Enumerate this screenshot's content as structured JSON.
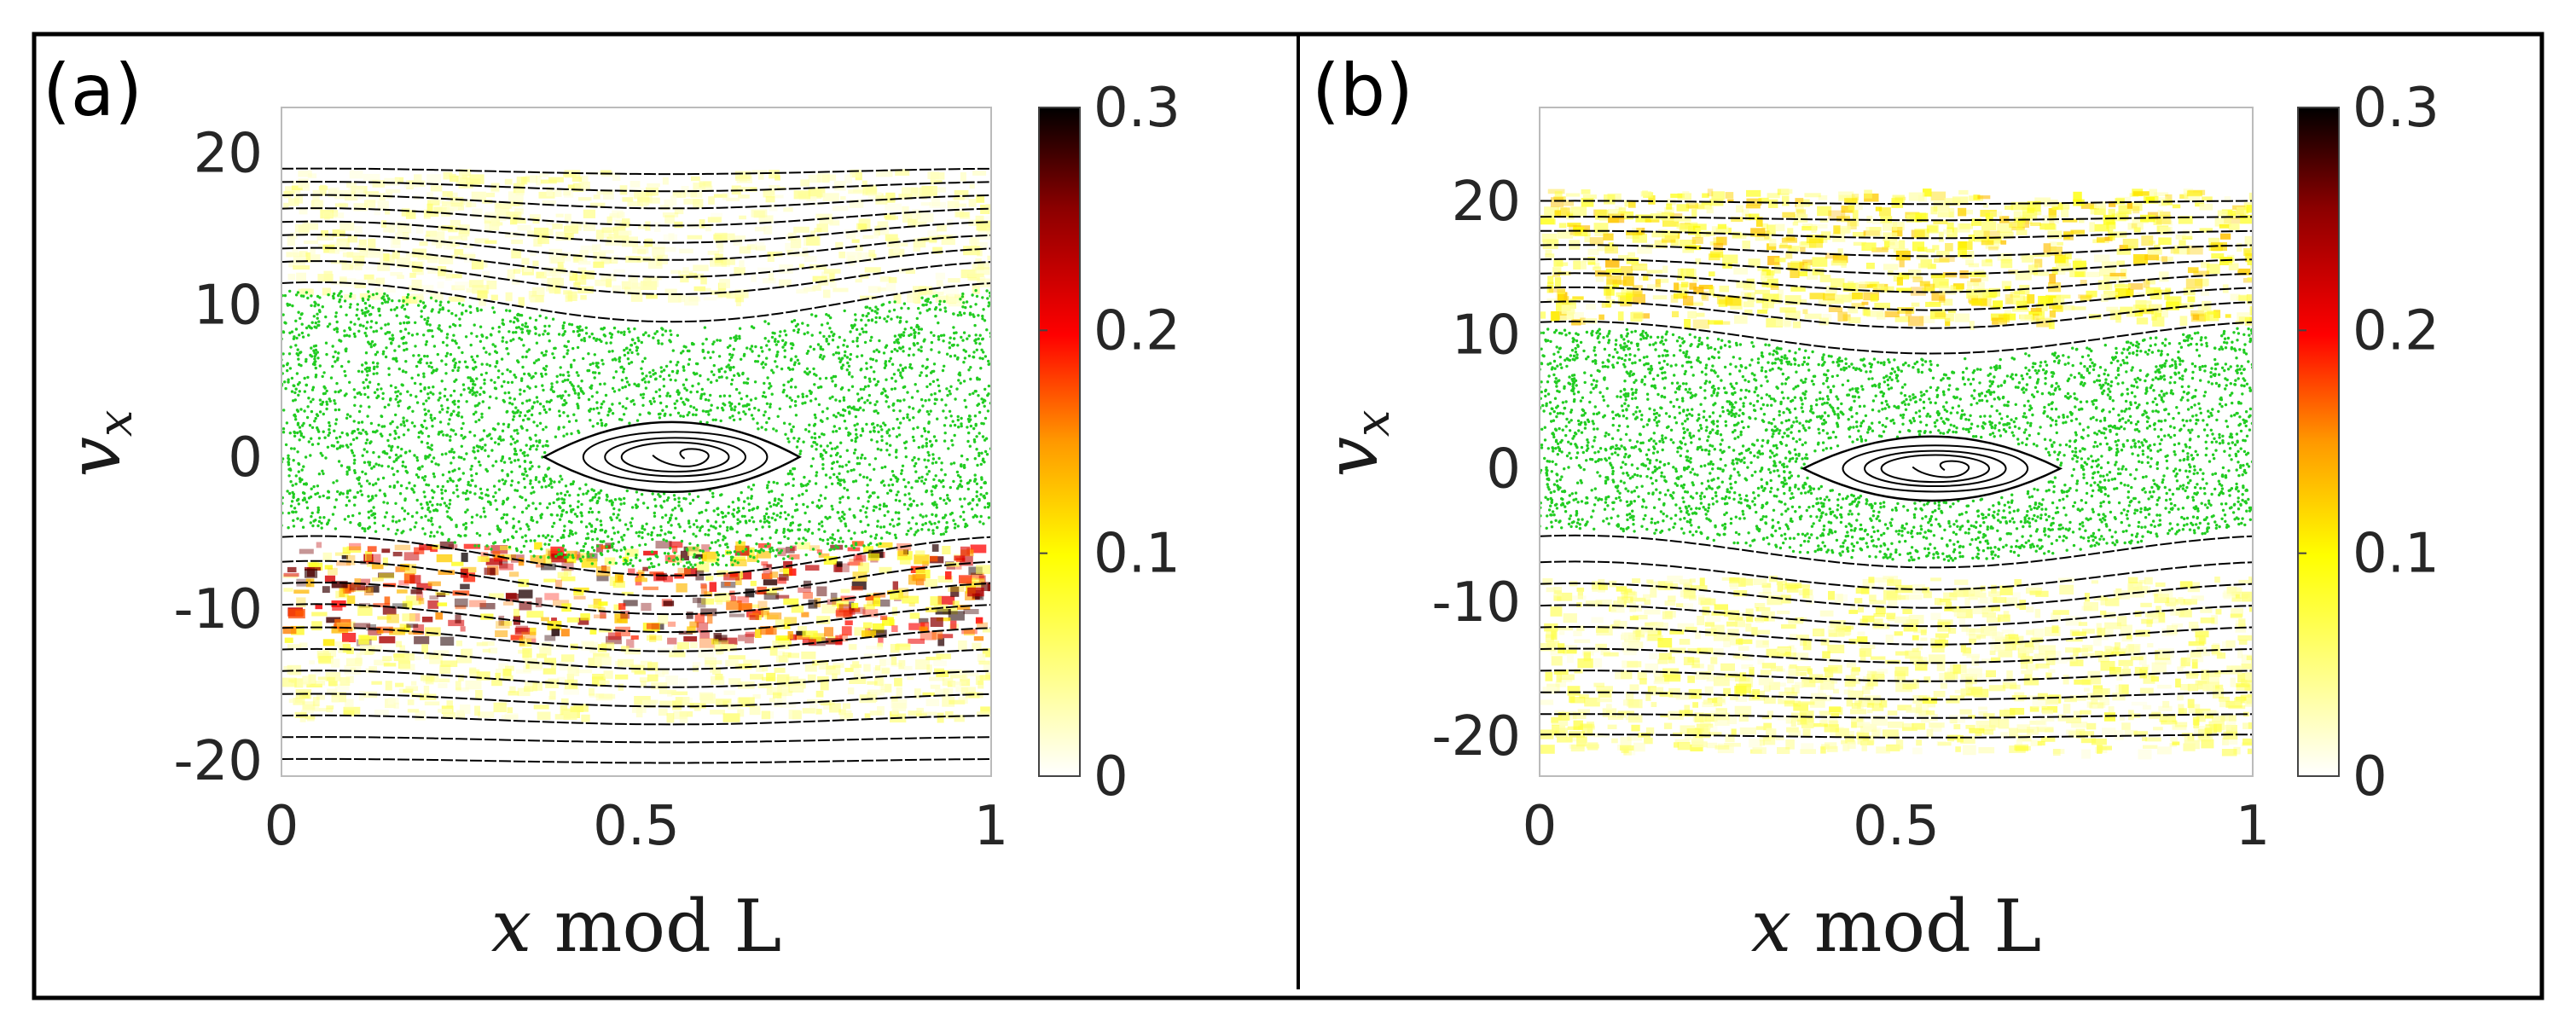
{
  "figure": {
    "panels": [
      {
        "label": "(a)",
        "xlabel_var": "x",
        "xlabel_rest": " mod L",
        "ylabel_var": "v",
        "ylabel_sub": "x"
      },
      {
        "label": "(b)",
        "xlabel_var": "x",
        "xlabel_rest": " mod L",
        "ylabel_var": "v",
        "ylabel_sub": "x"
      }
    ],
    "colors": {
      "frame": "#000000",
      "scatter": "#22cc22",
      "contour": "#000000",
      "colormap": [
        "#ffffff",
        "#ffff00",
        "#ff9900",
        "#ff0000",
        "#8b0000",
        "#000000"
      ]
    }
  },
  "chart_data": [
    {
      "type": "heatmap",
      "title": "(a)",
      "xlabel": "x mod L",
      "ylabel": "v_x",
      "xlim": [
        0,
        1
      ],
      "ylim": [
        -21,
        23
      ],
      "x_ticks": [
        0,
        0.5,
        1
      ],
      "x_tick_labels": [
        "0",
        "0.5",
        "1"
      ],
      "y_ticks": [
        -20,
        -10,
        0,
        10,
        20
      ],
      "y_tick_labels": [
        "-20",
        "-10",
        "0",
        "10",
        "20"
      ],
      "colorbar": {
        "range": [
          0,
          0.3
        ],
        "ticks": [
          0,
          0.1,
          0.2,
          0.3
        ],
        "tick_labels": [
          "0",
          "0.1",
          "0.2",
          "0.3"
        ]
      },
      "scatter_band": {
        "v_min": -6,
        "v_max": 10,
        "color": "green"
      },
      "island": {
        "x_center": 0.55,
        "v_center": 0,
        "half_width_x": 0.18,
        "half_height_v": 2.3
      },
      "separatrix": {
        "upper_mean": 10.2,
        "lower_mean": -6.5,
        "amplitude": 1.3
      },
      "upper_contours_v": [
        11.8,
        12.8,
        13.8,
        14.8,
        15.8,
        16.8,
        17.8,
        18.8
      ],
      "lower_contours_v": [
        -8,
        -9.3,
        -10.6,
        -12,
        -13.3,
        -14.6,
        -16,
        -17.3,
        -18.6,
        -20
      ],
      "density_regions": [
        {
          "v_min": -12,
          "v_max": -5.5,
          "level": 0.22
        },
        {
          "v_min": -17,
          "v_max": -12,
          "level": 0.05
        },
        {
          "v_min": 10.5,
          "v_max": 19,
          "level": 0.04
        }
      ]
    },
    {
      "type": "heatmap",
      "title": "(b)",
      "xlabel": "x mod L",
      "ylabel": "v_x",
      "xlim": [
        0,
        1
      ],
      "ylim": [
        -23,
        27
      ],
      "x_ticks": [
        0,
        0.5,
        1
      ],
      "x_tick_labels": [
        "0",
        "0.5",
        "1"
      ],
      "y_ticks": [
        -20,
        -10,
        0,
        10,
        20
      ],
      "y_tick_labels": [
        "-20",
        "-10",
        "0",
        "10",
        "20"
      ],
      "colorbar": {
        "range": [
          0,
          0.3
        ],
        "ticks": [
          0,
          0.1,
          0.2,
          0.3
        ],
        "tick_labels": [
          "0",
          "0.1",
          "0.2",
          "0.3"
        ]
      },
      "scatter_band": {
        "v_min": -6,
        "v_max": 10,
        "color": "green"
      },
      "island": {
        "x_center": 0.55,
        "v_center": 0,
        "half_width_x": 0.18,
        "half_height_v": 2.4
      },
      "separatrix": {
        "upper_mean": 9.8,
        "lower_mean": -6.2,
        "amplitude": 1.2
      },
      "upper_contours_v": [
        11.5,
        12.7,
        13.9,
        15.1,
        16.3,
        17.5,
        18.7,
        19.9
      ],
      "lower_contours_v": [
        -8,
        -9.5,
        -11,
        -12.5,
        -14,
        -15.5,
        -17,
        -18.5,
        -20
      ],
      "density_regions": [
        {
          "v_min": 11,
          "v_max": 21,
          "level": 0.1
        },
        {
          "v_min": -21,
          "v_max": -8,
          "level": 0.06
        }
      ]
    }
  ]
}
